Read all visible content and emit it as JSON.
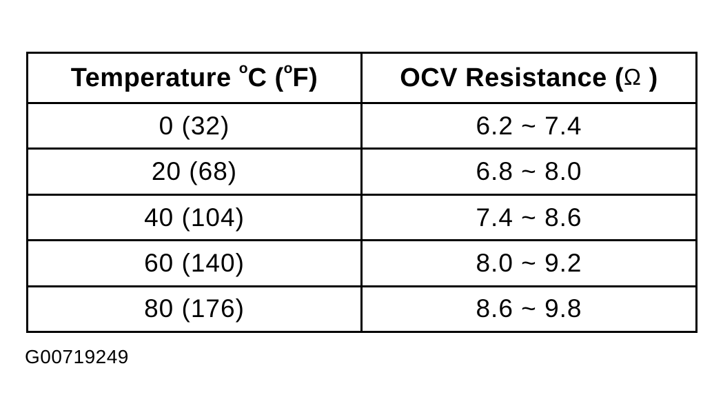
{
  "table": {
    "header": {
      "temperature": {
        "pre": "Temperature ",
        "deg1": "o",
        "c": "C (",
        "deg2": "o",
        "f": "F)"
      },
      "resistance": {
        "pre": "OCV Resistance (",
        "omega": "Ω",
        "close": " )"
      }
    },
    "rows": [
      {
        "temp": "0 (32)",
        "ocv": "6.2 ~ 7.4"
      },
      {
        "temp": "20 (68)",
        "ocv": "6.8 ~ 8.0"
      },
      {
        "temp": "40 (104)",
        "ocv": "7.4 ~ 8.6"
      },
      {
        "temp": "60 (140)",
        "ocv": "8.0 ~ 9.2"
      },
      {
        "temp": "80 (176)",
        "ocv": "8.6 ~ 9.8"
      }
    ]
  },
  "caption": "G00719249"
}
